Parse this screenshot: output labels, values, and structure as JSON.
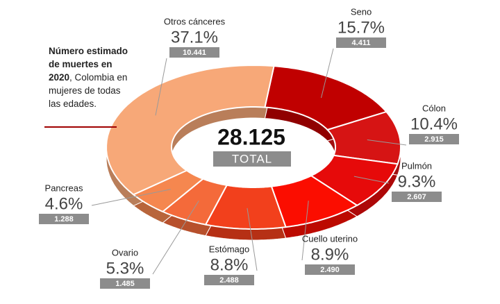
{
  "chart_data": {
    "type": "donut",
    "title": "Número estimado de muertes en 2020",
    "subtitle": ", Colombia en mujeres de todas las edades.",
    "categories": [
      "Seno",
      "Cólon",
      "Pulmón",
      "Cuello uterino",
      "Estómago",
      "Ovario",
      "Pancreas",
      "Otros cánceres"
    ],
    "values": [
      15.7,
      10.4,
      9.3,
      8.9,
      8.8,
      5.3,
      4.6,
      37.1
    ],
    "value_labels": [
      "15.7%",
      "10.4%",
      "9.3%",
      "8.9%",
      "8.8%",
      "5.3%",
      "4.6%",
      "37.1%"
    ],
    "counts": [
      4411,
      2915,
      2607,
      2490,
      2488,
      1485,
      1288,
      10441
    ],
    "count_labels": [
      "4.411",
      "2.915",
      "2.607",
      "2.490",
      "2.488",
      "1.485",
      "1.288",
      "10.441"
    ],
    "colors": [
      "#c00000",
      "#d61414",
      "#e60a0a",
      "#fb0d00",
      "#f2401c",
      "#f46a3a",
      "#f5874f",
      "#f7a878"
    ],
    "total": 28125,
    "total_label": "28.125",
    "total_caption": "TOTAL"
  }
}
